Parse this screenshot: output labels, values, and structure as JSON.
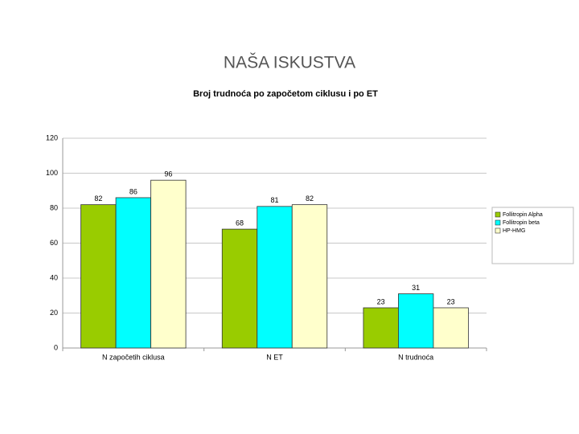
{
  "slide_title": "NAŠA ISKUSTVA",
  "chart_data": {
    "type": "bar",
    "title": "Broj trudnoća po započetom ciklusu i po ET",
    "categories": [
      "N započetih ciklusa",
      "N ET",
      "N trudnoća"
    ],
    "series": [
      {
        "name": "Follitropin Alpha",
        "color": "#99cc00",
        "values": [
          82,
          68,
          23
        ]
      },
      {
        "name": "Follitropin beta",
        "color": "#00ffff",
        "values": [
          86,
          81,
          31
        ]
      },
      {
        "name": "HP-HMG",
        "color": "#ffffcc",
        "values": [
          96,
          82,
          23
        ]
      }
    ],
    "ylim": [
      0,
      120
    ],
    "yticks": [
      0,
      20,
      40,
      60,
      80,
      100,
      120
    ],
    "grid": true,
    "legend": "right"
  }
}
